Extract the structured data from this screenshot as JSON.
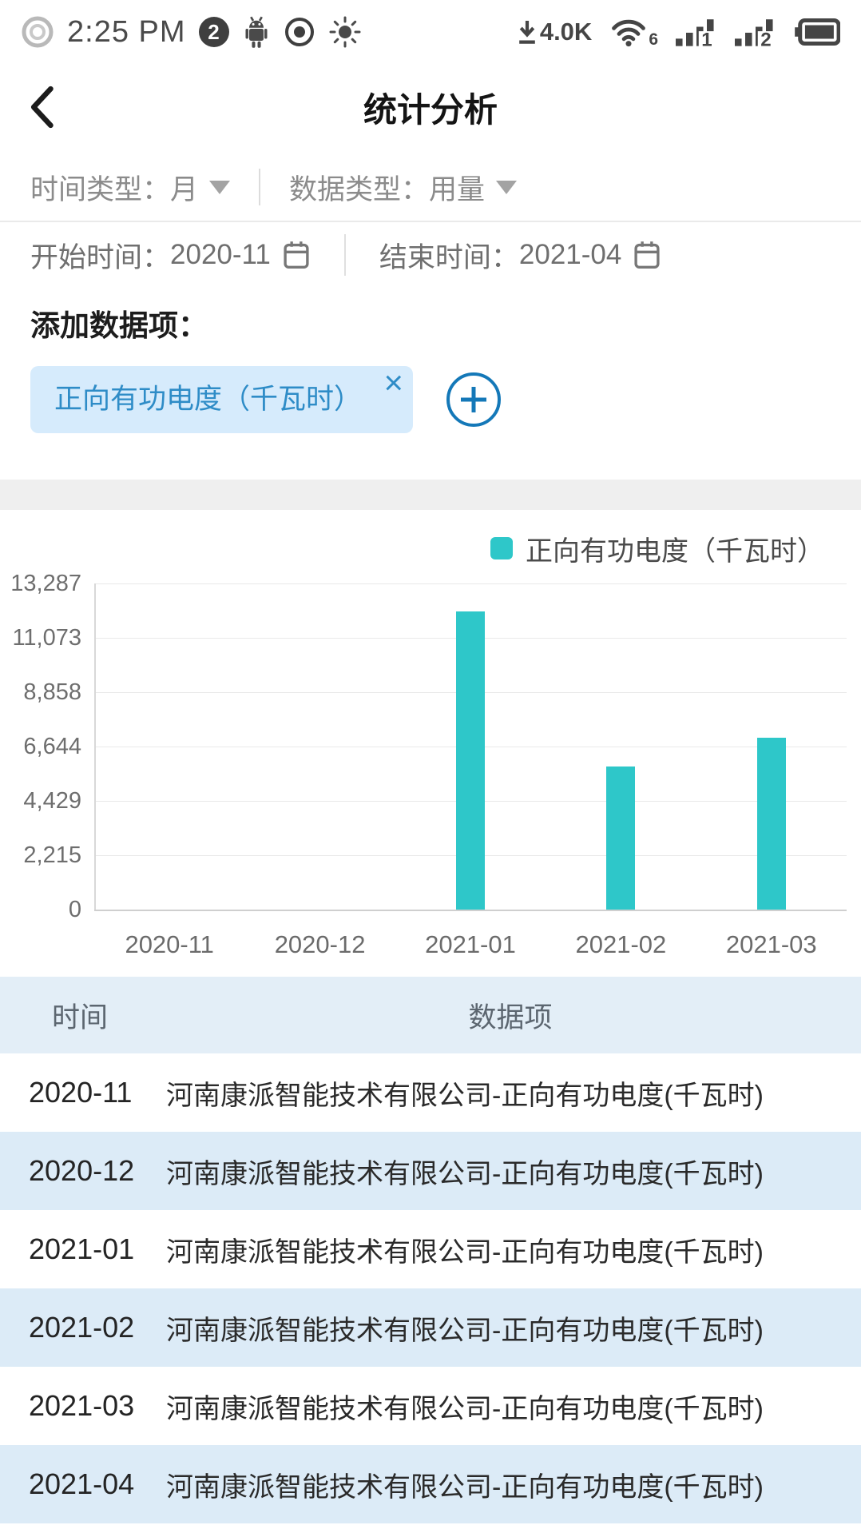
{
  "status_bar": {
    "time": "2:25 PM",
    "notification_count": "2",
    "download_rate": "4.0K",
    "wifi_number": "6",
    "signal1_number": "1",
    "signal2_number": "2"
  },
  "header": {
    "title": "统计分析"
  },
  "filters": {
    "time_type_label": "时间类型：",
    "time_type_value": "月",
    "data_type_label": "数据类型：",
    "data_type_value": "用量"
  },
  "date_range": {
    "start_label": "开始时间：",
    "start_value": "2020-11",
    "end_label": "结束时间：",
    "end_value": "2021-04"
  },
  "add_section": {
    "label": "添加数据项：",
    "tag_label": "正向有功电度（千瓦时）",
    "close_glyph": "×"
  },
  "chart_data": {
    "type": "bar",
    "title": "",
    "xlabel": "",
    "ylabel": "",
    "categories": [
      "2020-11",
      "2020-12",
      "2021-01",
      "2021-02",
      "2021-03"
    ],
    "series": [
      {
        "name": "正向有功电度（千瓦时）",
        "values": [
          0,
          0,
          12150,
          5830,
          7000
        ]
      }
    ],
    "legend": [
      "正向有功电度（千瓦时）"
    ],
    "legend_position": "top-right",
    "ylim": [
      0,
      13287
    ],
    "y_ticks": [
      0,
      2215,
      4429,
      6644,
      8858,
      11073,
      13287
    ],
    "y_tick_labels": [
      "0",
      "2,215",
      "4,429",
      "6,644",
      "8,858",
      "11,073",
      "13,287"
    ],
    "grid": true,
    "bar_color": "#2ec7c9"
  },
  "table": {
    "headers": [
      "时间",
      "数据项"
    ],
    "rows": [
      {
        "time": "2020-11",
        "item": "河南康派智能技术有限公司-正向有功电度(千瓦时)"
      },
      {
        "time": "2020-12",
        "item": "河南康派智能技术有限公司-正向有功电度(千瓦时)"
      },
      {
        "time": "2021-01",
        "item": "河南康派智能技术有限公司-正向有功电度(千瓦时)"
      },
      {
        "time": "2021-02",
        "item": "河南康派智能技术有限公司-正向有功电度(千瓦时)"
      },
      {
        "time": "2021-03",
        "item": "河南康派智能技术有限公司-正向有功电度(千瓦时)"
      },
      {
        "time": "2021-04",
        "item": "河南康派智能技术有限公司-正向有功电度(千瓦时)"
      }
    ]
  },
  "colors": {
    "accent_teal": "#2ec7c9",
    "tag_bg": "#d6ebfc",
    "tag_text": "#2e8cc7",
    "plus_button": "#1478b8",
    "table_header_bg": "#e3eef7",
    "table_row_alt_bg": "#dcebf7",
    "section_gap_bg": "#efefef"
  }
}
